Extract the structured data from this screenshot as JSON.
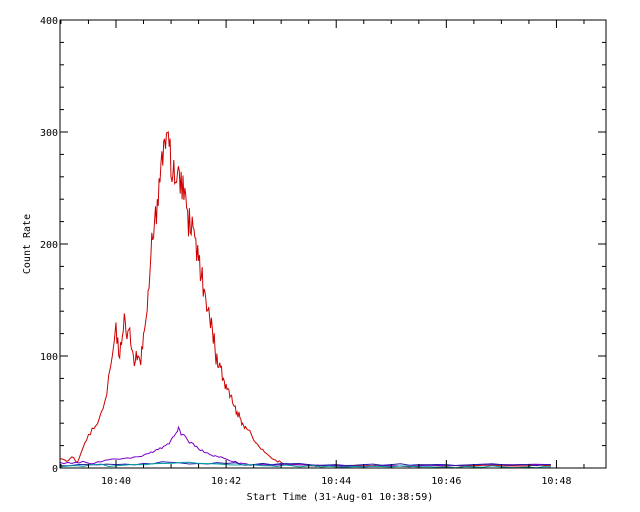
{
  "chart_data": {
    "type": "line",
    "title": "",
    "xlabel": "Start Time (31-Aug-01 10:38:59)",
    "ylabel": "Count Rate",
    "xlim_minutes": [
      38.983,
      48.9
    ],
    "ylim": [
      0,
      400
    ],
    "x_ticks": [
      {
        "value": 40,
        "label": "10:40"
      },
      {
        "value": 42,
        "label": "10:42"
      },
      {
        "value": 44,
        "label": "10:44"
      },
      {
        "value": 46,
        "label": "10:46"
      },
      {
        "value": 48,
        "label": "10:48"
      }
    ],
    "y_ticks": [
      {
        "value": 0,
        "label": "0"
      },
      {
        "value": 100,
        "label": "100"
      },
      {
        "value": 200,
        "label": "200"
      },
      {
        "value": 300,
        "label": "300"
      },
      {
        "value": 400,
        "label": "400"
      }
    ],
    "grid": false,
    "series": [
      {
        "color": "#cc0000",
        "x": [
          38.98,
          39.1,
          39.2,
          39.3,
          39.4,
          39.5,
          39.6,
          39.7,
          39.8,
          39.9,
          40.0,
          40.05,
          40.1,
          40.15,
          40.2,
          40.25,
          40.3,
          40.35,
          40.4,
          40.45,
          40.5,
          40.55,
          40.6,
          40.65,
          40.7,
          40.75,
          40.8,
          40.85,
          40.9,
          40.95,
          41.0,
          41.05,
          41.1,
          41.15,
          41.2,
          41.25,
          41.3,
          41.35,
          41.4,
          41.45,
          41.5,
          41.55,
          41.6,
          41.65,
          41.7,
          41.75,
          41.8,
          41.85,
          41.9,
          41.95,
          42.0,
          42.05,
          42.1,
          42.15,
          42.2,
          42.25,
          42.3,
          42.35,
          42.4,
          42.5,
          42.6,
          42.7,
          42.8,
          42.9,
          43.0,
          43.1,
          43.2,
          43.3,
          43.4,
          43.5,
          43.6,
          43.7,
          43.8,
          43.9,
          44.0,
          44.2,
          44.4,
          44.6,
          44.8,
          45.0,
          45.5,
          46.0,
          46.5,
          47.0,
          47.5,
          47.9
        ],
        "values": [
          8,
          6,
          10,
          5,
          18,
          30,
          35,
          45,
          60,
          90,
          130,
          100,
          110,
          138,
          115,
          125,
          105,
          95,
          100,
          92,
          120,
          135,
          160,
          210,
          220,
          240,
          255,
          270,
          285,
          300,
          260,
          275,
          255,
          265,
          240,
          250,
          230,
          210,
          215,
          205,
          185,
          170,
          160,
          140,
          135,
          125,
          105,
          90,
          90,
          80,
          75,
          70,
          65,
          55,
          50,
          45,
          40,
          37,
          34,
          25,
          19,
          14,
          10,
          7,
          5,
          4,
          3,
          3,
          3,
          2,
          2,
          2,
          2,
          2,
          2,
          2,
          2,
          2,
          2,
          2,
          2,
          2,
          2,
          2,
          2,
          2
        ]
      },
      {
        "color": "#7a00c8",
        "x": [
          38.98,
          39.2,
          39.4,
          39.6,
          39.8,
          40.0,
          40.2,
          40.4,
          40.6,
          40.7,
          40.8,
          40.9,
          41.0,
          41.05,
          41.1,
          41.15,
          41.2,
          41.3,
          41.4,
          41.5,
          41.6,
          41.7,
          41.8,
          41.9,
          42.0,
          42.1,
          42.2,
          42.3,
          42.5,
          43.0,
          44.0,
          45.0,
          46.0,
          47.0,
          47.9
        ],
        "values": [
          5,
          4,
          6,
          4,
          7,
          8,
          9,
          10,
          13,
          15,
          18,
          20,
          25,
          28,
          32,
          35,
          30,
          25,
          22,
          17,
          14,
          12,
          11,
          10,
          8,
          6,
          5,
          4,
          3,
          3,
          2,
          2,
          2,
          3,
          3
        ]
      },
      {
        "color": "#2222aa",
        "x": [
          38.98,
          39.5,
          40.0,
          40.5,
          41.0,
          41.5,
          42.0,
          42.5,
          43.0,
          43.5,
          44.0,
          44.5,
          45.0,
          45.5,
          46.0,
          46.5,
          47.0,
          47.5,
          47.9
        ],
        "values": [
          2,
          3,
          3,
          4,
          5,
          4,
          4,
          3,
          4,
          3,
          3,
          3,
          3,
          3,
          3,
          3,
          3,
          3,
          3
        ]
      },
      {
        "color": "#00a0a0",
        "x": [
          38.98,
          39.3,
          39.6,
          40.0,
          40.4,
          40.8,
          41.2,
          41.6,
          42.0,
          42.4,
          42.8,
          43.2,
          43.6,
          44.0,
          44.5,
          45.0,
          45.5,
          46.0,
          46.5,
          47.0,
          47.5,
          47.9
        ],
        "values": [
          1,
          2,
          3,
          2,
          3,
          4,
          5,
          4,
          3,
          3,
          2,
          2,
          2,
          1,
          1,
          1,
          1,
          1,
          1,
          1,
          1,
          1
        ]
      }
    ]
  }
}
